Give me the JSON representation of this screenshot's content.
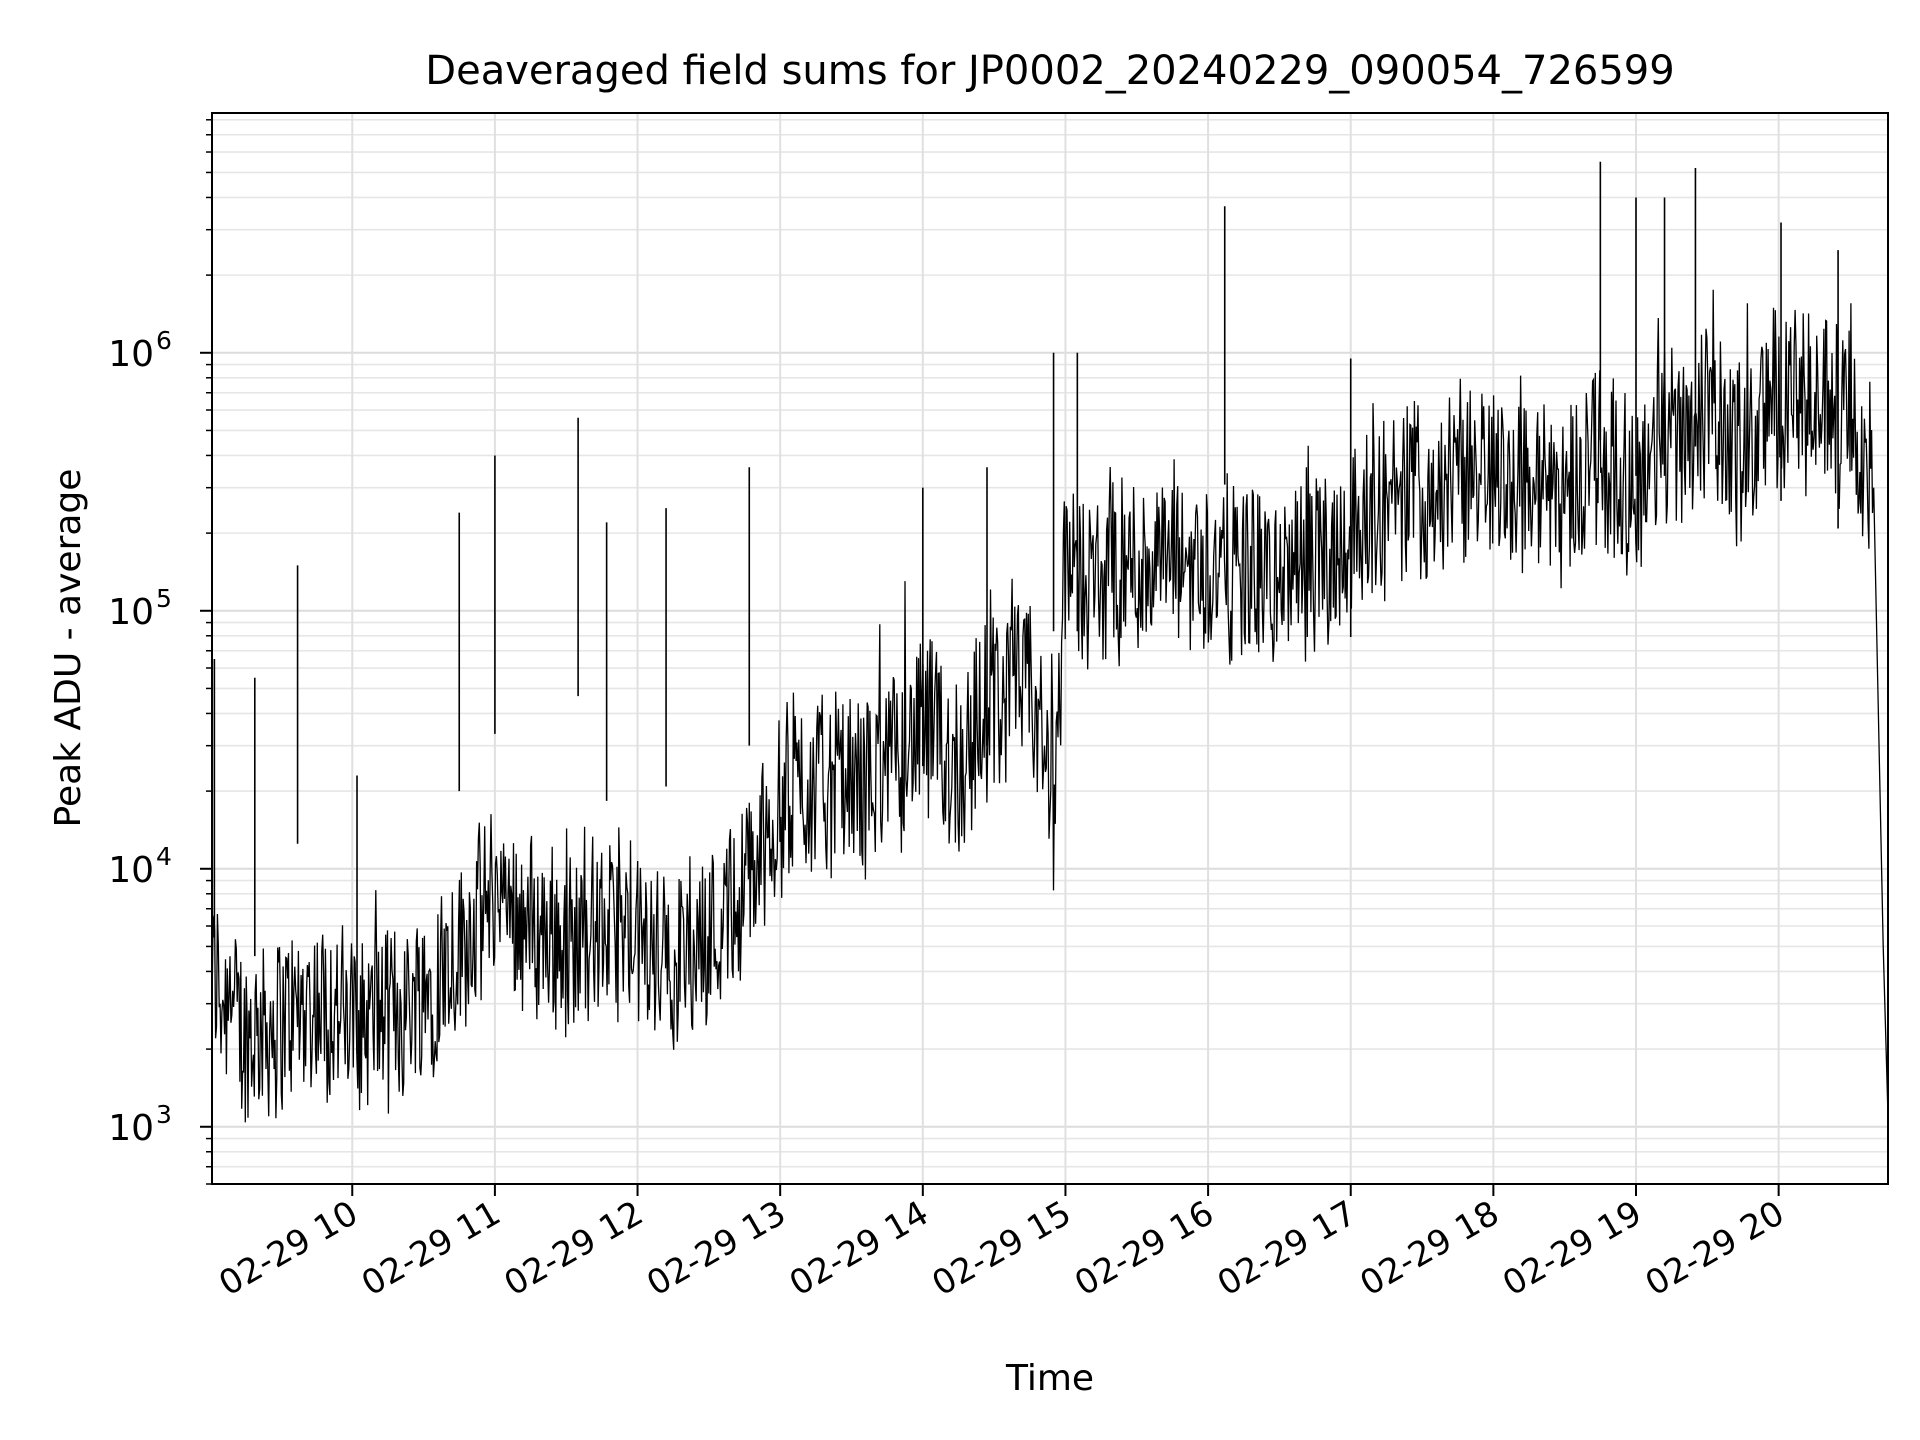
{
  "chart_data": {
    "type": "line",
    "title": "Deaveraged field sums for JP0002_20240229_090054_726599",
    "xlabel": "Time",
    "ylabel": "Peak ADU - average",
    "x_scale": "time",
    "y_scale": "log",
    "xlim": [
      "2024-02-29 09:01",
      "2024-02-29 20:46"
    ],
    "ylim": [
      600,
      8500000
    ],
    "x_ticks": [
      {
        "value": "2024-02-29 10:00",
        "label": "02-29 10"
      },
      {
        "value": "2024-02-29 11:00",
        "label": "02-29 11"
      },
      {
        "value": "2024-02-29 12:00",
        "label": "02-29 12"
      },
      {
        "value": "2024-02-29 13:00",
        "label": "02-29 13"
      },
      {
        "value": "2024-02-29 14:00",
        "label": "02-29 14"
      },
      {
        "value": "2024-02-29 15:00",
        "label": "02-29 15"
      },
      {
        "value": "2024-02-29 16:00",
        "label": "02-29 16"
      },
      {
        "value": "2024-02-29 17:00",
        "label": "02-29 17"
      },
      {
        "value": "2024-02-29 18:00",
        "label": "02-29 18"
      },
      {
        "value": "2024-02-29 19:00",
        "label": "02-29 19"
      },
      {
        "value": "2024-02-29 20:00",
        "label": "02-29 20"
      }
    ],
    "y_ticks": [
      {
        "value": 1000,
        "base": "10",
        "exp": "3"
      },
      {
        "value": 10000,
        "base": "10",
        "exp": "4"
      },
      {
        "value": 100000,
        "base": "10",
        "exp": "5"
      },
      {
        "value": 1000000,
        "base": "10",
        "exp": "6"
      }
    ],
    "grid": true,
    "line_color": "#000000",
    "series": [
      {
        "x": [
          "2024-02-29 09:01",
          "2024-02-29 09:15",
          "2024-02-29 09:30",
          "2024-02-29 09:45",
          "2024-02-29 10:00",
          "2024-02-29 10:15",
          "2024-02-29 10:30",
          "2024-02-29 10:45",
          "2024-02-29 11:00",
          "2024-02-29 11:15",
          "2024-02-29 11:30",
          "2024-02-29 11:45",
          "2024-02-29 12:00",
          "2024-02-29 12:15",
          "2024-02-29 12:30",
          "2024-02-29 12:45",
          "2024-02-29 13:00",
          "2024-02-29 13:15",
          "2024-02-29 13:30",
          "2024-02-29 13:45",
          "2024-02-29 14:00",
          "2024-02-29 14:15",
          "2024-02-29 14:30",
          "2024-02-29 14:45",
          "2024-02-29 14:55",
          "2024-02-29 15:00",
          "2024-02-29 15:15",
          "2024-02-29 15:30",
          "2024-02-29 15:45",
          "2024-02-29 16:00",
          "2024-02-29 16:15",
          "2024-02-29 16:30",
          "2024-02-29 16:45",
          "2024-02-29 17:00",
          "2024-02-29 17:15",
          "2024-02-29 17:30",
          "2024-02-29 17:45",
          "2024-02-29 18:00",
          "2024-02-29 18:15",
          "2024-02-29 18:30",
          "2024-02-29 18:45",
          "2024-02-29 19:00",
          "2024-02-29 19:15",
          "2024-02-29 19:30",
          "2024-02-29 19:45",
          "2024-02-29 20:00",
          "2024-02-29 20:15",
          "2024-02-29 20:30",
          "2024-02-29 20:40",
          "2024-02-29 20:44",
          "2024-02-29 20:46"
        ],
        "y": [
          4000,
          2200,
          2600,
          3000,
          2500,
          2700,
          3300,
          5000,
          8000,
          6000,
          5000,
          6000,
          5000,
          4500,
          5500,
          8000,
          18000,
          22000,
          20000,
          25000,
          35000,
          25000,
          45000,
          50000,
          20000,
          150000,
          120000,
          150000,
          160000,
          150000,
          140000,
          130000,
          150000,
          200000,
          250000,
          300000,
          300000,
          350000,
          300000,
          300000,
          400000,
          300000,
          500000,
          600000,
          400000,
          700000,
          600000,
          550000,
          300000,
          5000,
          1100
        ]
      }
    ],
    "spikes": [
      {
        "x": "2024-02-29 09:02",
        "y": 65000
      },
      {
        "x": "2024-02-29 09:19",
        "y": 55000
      },
      {
        "x": "2024-02-29 09:37",
        "y": 150000
      },
      {
        "x": "2024-02-29 10:02",
        "y": 23000
      },
      {
        "x": "2024-02-29 10:45",
        "y": 240000
      },
      {
        "x": "2024-02-29 11:00",
        "y": 400000
      },
      {
        "x": "2024-02-29 11:35",
        "y": 560000
      },
      {
        "x": "2024-02-29 11:47",
        "y": 220000
      },
      {
        "x": "2024-02-29 12:12",
        "y": 250000
      },
      {
        "x": "2024-02-29 12:47",
        "y": 360000
      },
      {
        "x": "2024-02-29 14:00",
        "y": 300000
      },
      {
        "x": "2024-02-29 14:27",
        "y": 360000
      },
      {
        "x": "2024-02-29 14:55",
        "y": 1000000
      },
      {
        "x": "2024-02-29 15:05",
        "y": 1000000
      },
      {
        "x": "2024-02-29 16:07",
        "y": 3700000
      },
      {
        "x": "2024-02-29 17:00",
        "y": 950000
      },
      {
        "x": "2024-02-29 18:45",
        "y": 5500000
      },
      {
        "x": "2024-02-29 19:00",
        "y": 4000000
      },
      {
        "x": "2024-02-29 19:12",
        "y": 4000000
      },
      {
        "x": "2024-02-29 19:25",
        "y": 5200000
      },
      {
        "x": "2024-02-29 20:01",
        "y": 3200000
      },
      {
        "x": "2024-02-29 20:25",
        "y": 2500000
      }
    ]
  }
}
